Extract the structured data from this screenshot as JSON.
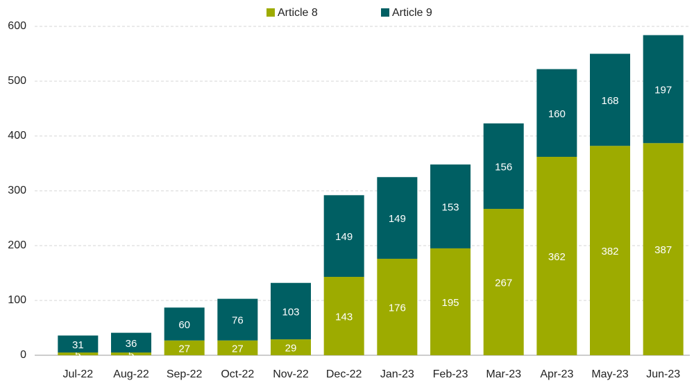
{
  "chart_data": {
    "type": "stacked_bar",
    "categories": [
      "Jul-22",
      "Aug-22",
      "Sep-22",
      "Oct-22",
      "Nov-22",
      "Dec-22",
      "Jan-23",
      "Feb-23",
      "Mar-23",
      "Apr-23",
      "May-23",
      "Jun-23"
    ],
    "series": [
      {
        "name": "Article 8",
        "color": "#9dab00",
        "values": [
          5,
          5,
          27,
          27,
          29,
          143,
          176,
          195,
          267,
          362,
          382,
          387
        ]
      },
      {
        "name": "Article 9",
        "color": "#005f63",
        "values": [
          31,
          36,
          60,
          76,
          103,
          149,
          149,
          153,
          156,
          160,
          168,
          197
        ]
      }
    ],
    "ylim": [
      0,
      600
    ],
    "yticks": [
      0,
      100,
      200,
      300,
      400,
      500,
      600
    ],
    "grid": true,
    "legend": "top"
  }
}
